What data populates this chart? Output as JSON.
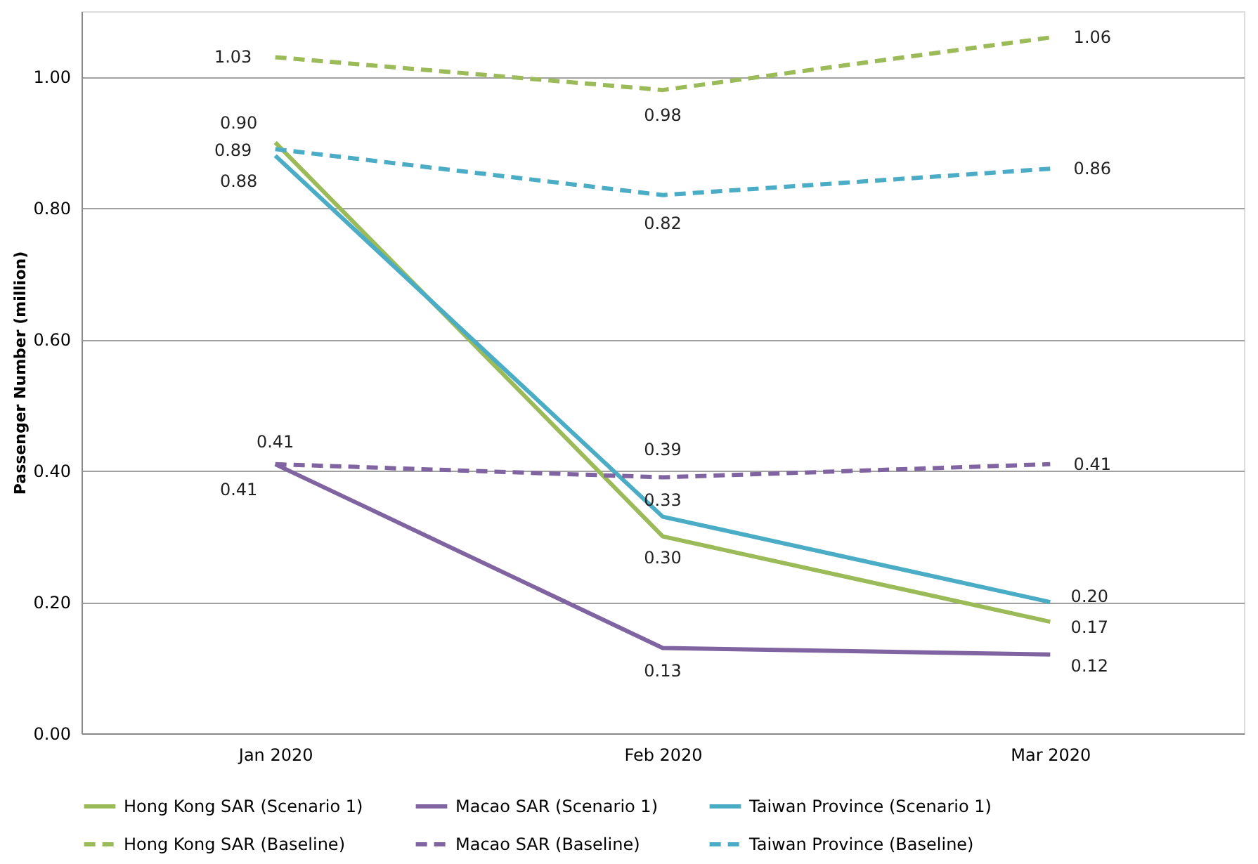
{
  "chart_data": {
    "type": "line",
    "ylabel": "Passenger Number (million)",
    "categories": [
      "Jan 2020",
      "Feb 2020",
      "Mar 2020"
    ],
    "series": [
      {
        "name": "Hong Kong SAR (Scenario 1)",
        "color": "#9bbb59",
        "line_style": "solid",
        "values": [
          0.9,
          0.3,
          0.17
        ],
        "value_labels": [
          "0.90",
          "0.30",
          "0.17"
        ]
      },
      {
        "name": "Macao SAR (Scenario 1)",
        "color": "#8064a2",
        "line_style": "solid",
        "values": [
          0.41,
          0.13,
          0.12
        ],
        "value_labels": [
          "0.41",
          "0.13",
          "0.12"
        ]
      },
      {
        "name": "Taiwan Province (Scenario 1)",
        "color": "#4bacc6",
        "line_style": "solid",
        "values": [
          0.88,
          0.33,
          0.2
        ],
        "value_labels": [
          "0.88",
          "0.33",
          "0.20"
        ]
      },
      {
        "name": "Hong Kong SAR (Baseline)",
        "color": "#9bbb59",
        "line_style": "dashed",
        "values": [
          1.03,
          0.98,
          1.06
        ],
        "value_labels": [
          "1.03",
          "0.98",
          "1.06"
        ]
      },
      {
        "name": "Macao SAR (Baseline)",
        "color": "#8064a2",
        "line_style": "dashed",
        "values": [
          0.41,
          0.39,
          0.41
        ],
        "value_labels": [
          "0.41",
          "0.39",
          "0.41"
        ]
      },
      {
        "name": "Taiwan Province (Baseline)",
        "color": "#4bacc6",
        "line_style": "dashed",
        "values": [
          0.89,
          0.82,
          0.86
        ],
        "value_labels": [
          "0.89",
          "0.82",
          "0.86"
        ]
      }
    ],
    "ylim": [
      0,
      1.1
    ],
    "yticks": [
      {
        "value": 0,
        "label": "0.00"
      },
      {
        "value": 0.2,
        "label": "0.20"
      },
      {
        "value": 0.4,
        "label": "0.40"
      },
      {
        "value": 0.6,
        "label": "0.60"
      },
      {
        "value": 0.8,
        "label": "0.80"
      },
      {
        "value": 1.0,
        "label": "1.00"
      }
    ],
    "grid": "y",
    "legend": "bottom",
    "marker": "none"
  }
}
